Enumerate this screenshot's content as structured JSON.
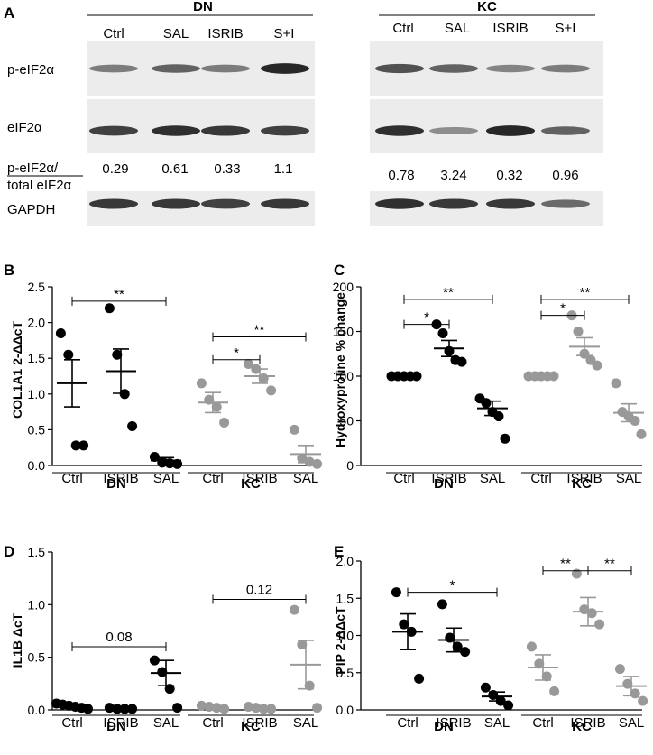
{
  "panel_a": {
    "letter": "A",
    "groups": [
      {
        "name": "DN",
        "lanes": [
          "Ctrl",
          "SAL",
          "ISRIB",
          "S+I"
        ],
        "ratios": [
          "0.29",
          "0.61",
          "0.33",
          "1.1"
        ]
      },
      {
        "name": "KC",
        "lanes": [
          "Ctrl",
          "SAL",
          "ISRIB",
          "S+I"
        ],
        "ratios": [
          "0.78",
          "3.24",
          "0.32",
          "0.96"
        ]
      }
    ],
    "blot_labels": [
      "p-eIF2α",
      "eIF2α",
      "GAPDH"
    ],
    "ratio_label_top": "p-eIF2α/",
    "ratio_label_bottom": "total eIF2α",
    "band_intensity": {
      "p-eIF2α": [
        0.45,
        0.6,
        0.45,
        0.95,
        0.7,
        0.6,
        0.4,
        0.45
      ],
      "eIF2α": [
        0.8,
        0.9,
        0.85,
        0.8,
        0.9,
        0.35,
        0.95,
        0.6
      ],
      "GAPDH": [
        0.85,
        0.85,
        0.8,
        0.85,
        0.9,
        0.85,
        0.85,
        0.55
      ]
    }
  },
  "chart_data": [
    {
      "letter": "B",
      "type": "scatter",
      "ylabel": "COL1A1 2-ΔΔcT",
      "ylim": [
        0,
        2.5
      ],
      "yticks": [
        "0.0",
        "0.5",
        "1.0",
        "1.5",
        "2.0",
        "2.5"
      ],
      "categories": [
        "Ctrl",
        "ISRIB",
        "SAL",
        "Ctrl",
        "ISRIB",
        "SAL"
      ],
      "group_labels": [
        "DN",
        "KC"
      ],
      "series": [
        {
          "group": "DN",
          "category": "Ctrl",
          "color": "#000000",
          "points": [
            1.85,
            1.55,
            0.28,
            0.28
          ],
          "mean": 1.15,
          "sem": 0.33
        },
        {
          "group": "DN",
          "category": "ISRIB",
          "color": "#000000",
          "points": [
            2.2,
            1.55,
            1.0,
            0.55
          ],
          "mean": 1.32,
          "sem": 0.31
        },
        {
          "group": "DN",
          "category": "SAL",
          "color": "#000000",
          "points": [
            0.12,
            0.04,
            0.03,
            0.02
          ],
          "mean": 0.07,
          "sem": 0.04
        },
        {
          "group": "KC",
          "category": "Ctrl",
          "color": "#999999",
          "points": [
            1.15,
            0.92,
            0.82,
            0.6
          ],
          "mean": 0.88,
          "sem": 0.14
        },
        {
          "group": "KC",
          "category": "ISRIB",
          "color": "#999999",
          "points": [
            1.42,
            1.35,
            1.22,
            1.05
          ],
          "mean": 1.25,
          "sem": 0.1
        },
        {
          "group": "KC",
          "category": "SAL",
          "color": "#999999",
          "points": [
            0.5,
            0.1,
            0.05,
            0.02
          ],
          "mean": 0.16,
          "sem": 0.12
        }
      ],
      "significance": [
        {
          "from": 0,
          "to": 2,
          "y": 2.3,
          "label": "**"
        },
        {
          "from": 3,
          "to": 5,
          "y": 1.8,
          "label": "**"
        },
        {
          "from": 3,
          "to": 4,
          "y": 1.48,
          "label": "*"
        }
      ]
    },
    {
      "letter": "C",
      "type": "scatter",
      "ylabel": "Hydroxyproline % change",
      "ylim": [
        0,
        200
      ],
      "yticks": [
        "0",
        "50",
        "100",
        "150",
        "200"
      ],
      "categories": [
        "Ctrl",
        "ISRIB",
        "SAL",
        "Ctrl",
        "ISRIB",
        "SAL"
      ],
      "group_labels": [
        "DN",
        "KC"
      ],
      "series": [
        {
          "group": "DN",
          "category": "Ctrl",
          "color": "#000000",
          "points": [
            100,
            100,
            100,
            100,
            100
          ],
          "mean": 100,
          "sem": 0
        },
        {
          "group": "DN",
          "category": "ISRIB",
          "color": "#000000",
          "points": [
            158,
            148,
            128,
            118,
            116
          ],
          "mean": 131,
          "sem": 9
        },
        {
          "group": "DN",
          "category": "SAL",
          "color": "#000000",
          "points": [
            75,
            70,
            60,
            55,
            30
          ],
          "mean": 64,
          "sem": 8
        },
        {
          "group": "KC",
          "category": "Ctrl",
          "color": "#999999",
          "points": [
            100,
            100,
            100,
            100,
            100
          ],
          "mean": 100,
          "sem": 0
        },
        {
          "group": "KC",
          "category": "ISRIB",
          "color": "#999999",
          "points": [
            168,
            150,
            125,
            118,
            112
          ],
          "mean": 133,
          "sem": 10
        },
        {
          "group": "KC",
          "category": "SAL",
          "color": "#999999",
          "points": [
            92,
            60,
            55,
            50,
            35
          ],
          "mean": 59,
          "sem": 10
        }
      ],
      "significance": [
        {
          "from": 0,
          "to": 2,
          "y": 186,
          "label": "**"
        },
        {
          "from": 0,
          "to": 1,
          "y": 158,
          "label": "*"
        },
        {
          "from": 3,
          "to": 5,
          "y": 186,
          "label": "**"
        },
        {
          "from": 3,
          "to": 4,
          "y": 168,
          "label": "*"
        }
      ]
    },
    {
      "letter": "D",
      "type": "scatter",
      "ylabel": "IL1B ΔcT",
      "ylim": [
        0,
        1.5
      ],
      "yticks": [
        "0.0",
        "0.5",
        "1.0",
        "1.5"
      ],
      "categories": [
        "Ctrl",
        "ISRIB",
        "SAL",
        "Ctrl",
        "ISRIB",
        "SAL"
      ],
      "group_labels": [
        "DN",
        "KC"
      ],
      "series": [
        {
          "group": "DN",
          "category": "Ctrl",
          "color": "#000000",
          "points": [
            0.06,
            0.05,
            0.04,
            0.03,
            0.02,
            0.01
          ],
          "mean": 0.035,
          "sem": 0.01
        },
        {
          "group": "DN",
          "category": "ISRIB",
          "color": "#000000",
          "points": [
            0.02,
            0.01,
            0.01,
            0.01
          ],
          "mean": 0.01,
          "sem": 0.003
        },
        {
          "group": "DN",
          "category": "SAL",
          "color": "#000000",
          "points": [
            0.47,
            0.36,
            0.2,
            0.02
          ],
          "mean": 0.35,
          "sem": 0.12
        },
        {
          "group": "KC",
          "category": "Ctrl",
          "color": "#999999",
          "points": [
            0.04,
            0.03,
            0.02,
            0.01
          ],
          "mean": 0.025,
          "sem": 0.01
        },
        {
          "group": "KC",
          "category": "ISRIB",
          "color": "#999999",
          "points": [
            0.03,
            0.02,
            0.01,
            0.01
          ],
          "mean": 0.02,
          "sem": 0.005
        },
        {
          "group": "KC",
          "category": "SAL",
          "color": "#999999",
          "points": [
            0.95,
            0.62,
            0.23,
            0.02
          ],
          "mean": 0.43,
          "sem": 0.23
        }
      ],
      "significance": [
        {
          "from": 0,
          "to": 2,
          "y": 0.6,
          "label": "0.08"
        },
        {
          "from": 3,
          "to": 5,
          "y": 1.05,
          "label": "0.12"
        }
      ]
    },
    {
      "letter": "E",
      "type": "scatter",
      "ylabel": "PIP 2-ΔΔcT",
      "ylim": [
        0,
        2.0
      ],
      "yticks": [
        "0.0",
        "0.5",
        "1.0",
        "1.5",
        "2.0"
      ],
      "categories": [
        "Ctrl",
        "ISRIB",
        "SAL",
        "Ctrl",
        "ISRIB",
        "SAL"
      ],
      "group_labels": [
        "DN",
        "KC"
      ],
      "series": [
        {
          "group": "DN",
          "category": "Ctrl",
          "color": "#000000",
          "points": [
            1.58,
            1.15,
            1.05,
            0.42
          ],
          "mean": 1.05,
          "sem": 0.24
        },
        {
          "group": "DN",
          "category": "ISRIB",
          "color": "#000000",
          "points": [
            1.42,
            0.97,
            0.85,
            0.78
          ],
          "mean": 0.94,
          "sem": 0.16
        },
        {
          "group": "DN",
          "category": "SAL",
          "color": "#000000",
          "points": [
            0.3,
            0.2,
            0.12,
            0.06
          ],
          "mean": 0.18,
          "sem": 0.06
        },
        {
          "group": "KC",
          "category": "Ctrl",
          "color": "#999999",
          "points": [
            0.85,
            0.62,
            0.45,
            0.25
          ],
          "mean": 0.57,
          "sem": 0.17
        },
        {
          "group": "KC",
          "category": "ISRIB",
          "color": "#999999",
          "points": [
            1.83,
            1.35,
            1.3,
            1.15
          ],
          "mean": 1.32,
          "sem": 0.19
        },
        {
          "group": "KC",
          "category": "SAL",
          "color": "#999999",
          "points": [
            0.55,
            0.35,
            0.22,
            0.12
          ],
          "mean": 0.32,
          "sem": 0.13
        }
      ],
      "significance": [
        {
          "from": 0,
          "to": 2,
          "y": 1.58,
          "label": "*"
        },
        {
          "from": 3,
          "to": 4,
          "y": 1.87,
          "label": "**"
        },
        {
          "from": 4,
          "to": 5,
          "y": 1.87,
          "label": "**"
        }
      ]
    }
  ]
}
